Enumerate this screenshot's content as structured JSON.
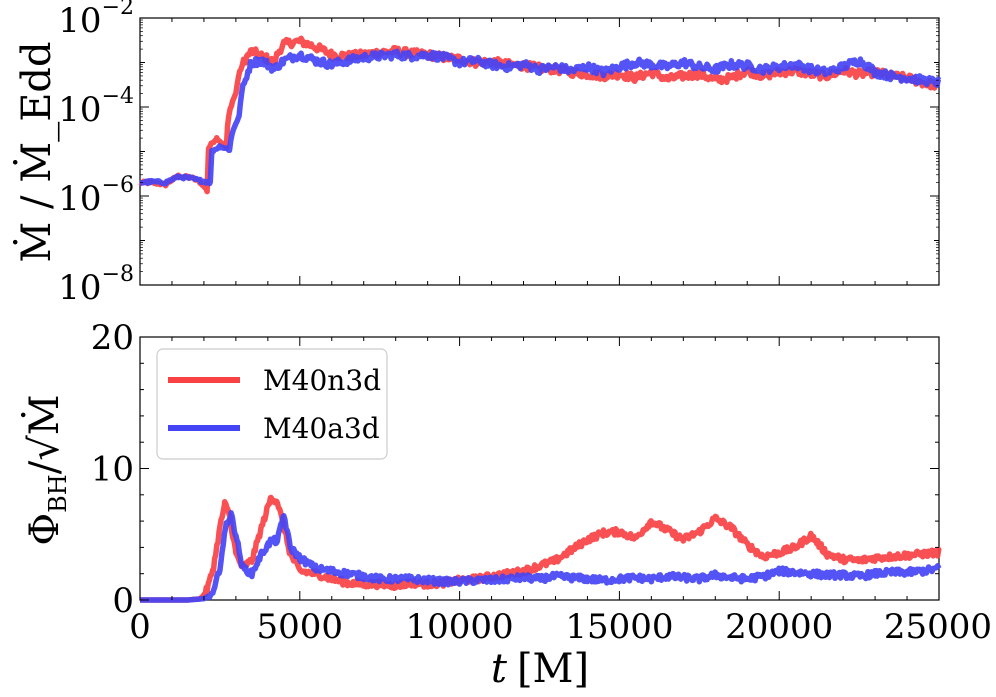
{
  "chart_data": [
    {
      "type": "line",
      "panel": "top",
      "ylabel": "Ṁ / Ṁ_Edd",
      "yscale": "log",
      "ylim": [
        1e-08,
        0.01
      ],
      "xlim": [
        0,
        25000
      ],
      "ytick_labels": [
        {
          "value": 1e-08,
          "base": "10",
          "exp": "−8"
        },
        {
          "value": 1e-06,
          "base": "10",
          "exp": "−6"
        },
        {
          "value": 0.0001,
          "base": "10",
          "exp": "−4"
        },
        {
          "value": 0.01,
          "base": "10",
          "exp": "−2"
        }
      ],
      "series": [
        {
          "name": "M40n3d",
          "color": "#f94144",
          "x": [
            0,
            400,
            800,
            1200,
            1600,
            1900,
            2100,
            2150,
            2400,
            2700,
            3000,
            3300,
            3500,
            3800,
            4200,
            4500,
            5000,
            5500,
            6000,
            6500,
            7000,
            7500,
            8000,
            8500,
            9000,
            9500,
            10000,
            10500,
            11000,
            11500,
            12000,
            12500,
            13000,
            13500,
            14000,
            14500,
            15000,
            15500,
            16000,
            16500,
            17000,
            17500,
            18000,
            18500,
            19000,
            19500,
            20000,
            20500,
            21000,
            21500,
            22000,
            22500,
            23000,
            23500,
            24000,
            24500,
            25000
          ],
          "y": [
            2e-06,
            2e-06,
            1.8e-06,
            2.8e-06,
            2.6e-06,
            2e-06,
            1.3e-06,
            1.2e-05,
            2e-05,
            1.2e-05,
            0.0002,
            0.0012,
            0.0018,
            0.0014,
            0.001,
            0.0026,
            0.003,
            0.0022,
            0.0015,
            0.0014,
            0.0015,
            0.0017,
            0.0018,
            0.0016,
            0.0015,
            0.0013,
            0.0012,
            0.001,
            0.00105,
            0.0009,
            0.00085,
            0.00075,
            0.0007,
            0.0006,
            0.00055,
            0.0005,
            0.00055,
            0.00045,
            0.0006,
            0.00042,
            0.0005,
            0.00055,
            0.0004,
            0.00045,
            0.00065,
            0.0005,
            0.0006,
            0.00065,
            0.00055,
            0.0005,
            0.00065,
            0.00055,
            0.0006,
            0.0005,
            0.00045,
            0.00035,
            0.0003
          ]
        },
        {
          "name": "M40a3d",
          "color": "#4444f5",
          "x": [
            0,
            400,
            800,
            1200,
            1600,
            1900,
            2200,
            2250,
            2500,
            2800,
            3100,
            3300,
            3500,
            3800,
            4200,
            4500,
            5000,
            5500,
            6000,
            6500,
            7000,
            7500,
            8000,
            8500,
            9000,
            9500,
            10000,
            10500,
            11000,
            11500,
            12000,
            12500,
            13000,
            13500,
            14000,
            14500,
            15000,
            15500,
            16000,
            16500,
            17000,
            17500,
            18000,
            18500,
            19000,
            19500,
            20000,
            20500,
            21000,
            21500,
            22000,
            22500,
            23000,
            23500,
            24000,
            24500,
            25000
          ],
          "y": [
            2e-06,
            2.1e-06,
            2e-06,
            2.7e-06,
            2.5e-06,
            2.2e-06,
            2e-06,
            1e-05,
            1.3e-05,
            1.1e-05,
            6e-05,
            0.0004,
            0.001,
            0.0011,
            0.0007,
            0.0011,
            0.0015,
            0.0011,
            0.0009,
            0.0011,
            0.0013,
            0.0014,
            0.0015,
            0.0014,
            0.0015,
            0.0013,
            0.001,
            0.0011,
            0.0009,
            0.0008,
            0.0009,
            0.0007,
            0.0008,
            0.00065,
            0.0008,
            0.0006,
            0.0008,
            0.001,
            0.0009,
            0.0008,
            0.001,
            0.0008,
            0.0007,
            0.0009,
            0.00085,
            0.0007,
            0.0008,
            0.0009,
            0.0007,
            0.0006,
            0.0008,
            0.0011,
            0.0006,
            0.0005,
            0.00045,
            0.0004,
            0.00035
          ]
        }
      ]
    },
    {
      "type": "line",
      "panel": "bottom",
      "ylabel_base": "Φ",
      "ylabel_sub": "BH",
      "ylabel_rest": "/√",
      "ylabel_mdot": "Ṁ",
      "xlabel_var": "t",
      "xlabel_unit": "[M]",
      "ylim": [
        0,
        20
      ],
      "xlim": [
        0,
        25000
      ],
      "ytick_labels": [
        "0",
        "10",
        "20"
      ],
      "xtick_labels": [
        "0",
        "5000",
        "10000",
        "15000",
        "20000",
        "25000"
      ],
      "yticks": [
        0,
        10,
        20
      ],
      "xticks": [
        0,
        5000,
        10000,
        15000,
        20000,
        25000
      ],
      "series": [
        {
          "name": "M40n3d",
          "color": "#f94144",
          "x": [
            0,
            1500,
            1900,
            2100,
            2300,
            2500,
            2650,
            2800,
            3000,
            3200,
            3500,
            3800,
            4100,
            4300,
            4500,
            4700,
            5000,
            5500,
            6000,
            6500,
            7000,
            7500,
            8000,
            8500,
            9000,
            9500,
            10000,
            10500,
            11000,
            11500,
            12000,
            12500,
            13000,
            13500,
            14000,
            14500,
            15000,
            15500,
            16000,
            16500,
            17000,
            17500,
            18000,
            18500,
            19000,
            19500,
            20000,
            20500,
            21000,
            21500,
            22000,
            22500,
            23000,
            23500,
            24000,
            24500,
            25000
          ],
          "y": [
            0,
            0,
            0.1,
            0.8,
            2.5,
            5.5,
            7.3,
            6.5,
            3.5,
            2.5,
            3,
            5.5,
            7.8,
            7.5,
            5.5,
            3.5,
            2.2,
            2,
            1.6,
            1.3,
            1.2,
            1.2,
            1.1,
            1.3,
            1.2,
            1.3,
            1.5,
            1.6,
            1.8,
            2,
            2.2,
            2.6,
            3,
            3.8,
            4.6,
            5.1,
            5.2,
            4.7,
            6,
            5.3,
            4.6,
            5.2,
            6.2,
            5.5,
            4.2,
            3.3,
            3.6,
            4,
            4.9,
            3.5,
            3.1,
            3,
            3.2,
            3.3,
            3.4,
            3.5,
            3.6
          ]
        },
        {
          "name": "M40a3d",
          "color": "#4444f5",
          "x": [
            0,
            1500,
            2000,
            2300,
            2500,
            2700,
            2850,
            3000,
            3200,
            3500,
            3800,
            4100,
            4300,
            4500,
            4700,
            5000,
            5500,
            6000,
            6500,
            7000,
            7500,
            8000,
            8500,
            9000,
            9500,
            10000,
            10500,
            11000,
            11500,
            12000,
            12500,
            13000,
            13500,
            14000,
            14500,
            15000,
            15500,
            16000,
            16500,
            17000,
            17500,
            18000,
            18500,
            19000,
            19500,
            20000,
            20500,
            21000,
            21500,
            22000,
            22500,
            23000,
            23500,
            24000,
            24500,
            25000
          ],
          "y": [
            0,
            0,
            0.1,
            0.5,
            2.5,
            5.8,
            6.5,
            5,
            2.5,
            2,
            3.5,
            4.5,
            4.5,
            6.5,
            4,
            3.2,
            2.4,
            2.2,
            2,
            1.8,
            1.6,
            1.6,
            1.6,
            1.5,
            1.4,
            1.4,
            1.5,
            1.5,
            1.6,
            1.7,
            1.6,
            1.8,
            1.7,
            1.6,
            1.5,
            1.6,
            1.7,
            1.6,
            1.8,
            1.7,
            1.6,
            1.9,
            1.7,
            1.6,
            1.8,
            2.2,
            2.1,
            2,
            1.9,
            1.9,
            1.8,
            2,
            2.1,
            2.1,
            2.2,
            2.4
          ]
        }
      ],
      "legend": {
        "placement": "top-left",
        "entries": [
          {
            "label": "M40n3d",
            "color": "#f94144"
          },
          {
            "label": "M40a3d",
            "color": "#4444f5"
          }
        ]
      }
    }
  ]
}
